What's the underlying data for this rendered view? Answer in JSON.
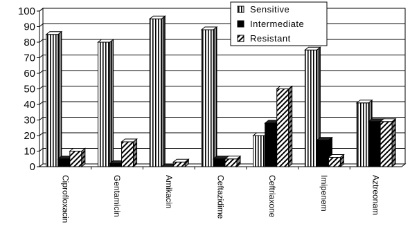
{
  "chart_data": {
    "type": "bar",
    "categories": [
      "Ciprofloxacin",
      "Gentamicin",
      "Amikacin",
      "Ceftazidime",
      "Ceftriaxone",
      "Imipenem",
      "Aztreonam"
    ],
    "series": [
      {
        "name": "Sensitive",
        "values": [
          85,
          80,
          95,
          88,
          20,
          75,
          41
        ],
        "pattern": "vertical-stripes"
      },
      {
        "name": "Intermediate",
        "values": [
          5,
          2,
          0,
          5,
          28,
          17,
          29
        ],
        "pattern": "solid-black"
      },
      {
        "name": "Resistant",
        "values": [
          10,
          16,
          3,
          5,
          50,
          6,
          29
        ],
        "pattern": "diagonal-stripes"
      }
    ],
    "ylim": [
      0,
      100
    ],
    "yticks": [
      "0",
      "10",
      "20",
      "30",
      "40",
      "50",
      "60",
      "70",
      "80",
      "90",
      "100"
    ],
    "grid": true,
    "legend": "top-right",
    "colors": {
      "bar_face": "#ffffff",
      "stroke": "#000000",
      "grid": "#000000"
    }
  }
}
